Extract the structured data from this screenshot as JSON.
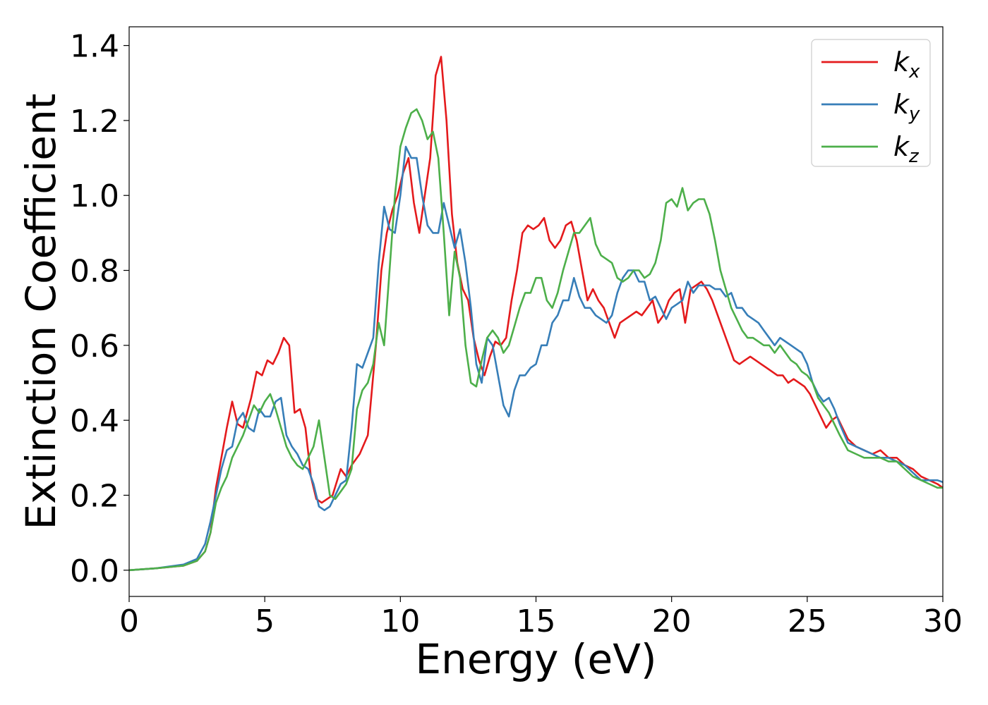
{
  "chart_data": {
    "type": "line",
    "xlabel": "Energy (eV)",
    "ylabel": "Extinction Coefficient",
    "xlim": [
      0,
      30
    ],
    "ylim": [
      -0.07,
      1.45
    ],
    "xticks": [
      0,
      5,
      10,
      15,
      20,
      25,
      30
    ],
    "xtick_labels": [
      "0",
      "5",
      "10",
      "15",
      "20",
      "25",
      "30"
    ],
    "yticks": [
      0.0,
      0.2,
      0.4,
      0.6,
      0.8,
      1.0,
      1.2,
      1.4
    ],
    "ytick_labels": [
      "0.0",
      "0.2",
      "0.4",
      "0.6",
      "0.8",
      "1.0",
      "1.2",
      "1.4"
    ],
    "grid": false,
    "legend_position": "top-right",
    "series": [
      {
        "name": "k_x",
        "legend_main": "k",
        "legend_sub": "x",
        "color": "#e41a1c",
        "x": [
          0,
          1,
          2,
          2.5,
          2.8,
          3.0,
          3.2,
          3.4,
          3.6,
          3.8,
          4.0,
          4.2,
          4.5,
          4.7,
          4.9,
          5.1,
          5.3,
          5.5,
          5.7,
          5.9,
          6.1,
          6.3,
          6.5,
          6.7,
          6.9,
          7.1,
          7.3,
          7.5,
          7.8,
          8.0,
          8.2,
          8.5,
          8.8,
          9.1,
          9.3,
          9.5,
          9.7,
          9.9,
          10.1,
          10.3,
          10.5,
          10.7,
          10.9,
          11.1,
          11.3,
          11.5,
          11.7,
          11.9,
          12.1,
          12.3,
          12.5,
          12.7,
          12.9,
          13.1,
          13.3,
          13.5,
          13.7,
          13.9,
          14.1,
          14.3,
          14.5,
          14.7,
          14.9,
          15.1,
          15.3,
          15.5,
          15.7,
          15.9,
          16.1,
          16.3,
          16.5,
          16.7,
          16.9,
          17.1,
          17.3,
          17.5,
          17.7,
          17.9,
          18.1,
          18.3,
          18.5,
          18.7,
          18.9,
          19.1,
          19.3,
          19.5,
          19.7,
          19.9,
          20.1,
          20.3,
          20.5,
          20.7,
          20.9,
          21.1,
          21.3,
          21.5,
          21.7,
          21.9,
          22.1,
          22.3,
          22.5,
          22.7,
          22.9,
          23.1,
          23.3,
          23.5,
          23.7,
          23.9,
          24.1,
          24.3,
          24.5,
          24.7,
          24.9,
          25.1,
          25.3,
          25.5,
          25.7,
          25.9,
          26.1,
          26.3,
          26.5,
          26.8,
          27.1,
          27.4,
          27.7,
          28.0,
          28.3,
          28.6,
          28.9,
          29.2,
          29.5,
          29.8,
          30
        ],
        "y": [
          0.0,
          0.005,
          0.012,
          0.025,
          0.05,
          0.1,
          0.22,
          0.3,
          0.38,
          0.45,
          0.39,
          0.38,
          0.46,
          0.53,
          0.52,
          0.56,
          0.55,
          0.58,
          0.62,
          0.6,
          0.42,
          0.43,
          0.38,
          0.25,
          0.19,
          0.18,
          0.19,
          0.2,
          0.27,
          0.25,
          0.28,
          0.31,
          0.36,
          0.6,
          0.8,
          0.9,
          0.96,
          1.0,
          1.06,
          1.1,
          0.98,
          0.9,
          1.0,
          1.1,
          1.32,
          1.37,
          1.2,
          0.95,
          0.82,
          0.75,
          0.72,
          0.62,
          0.56,
          0.52,
          0.57,
          0.61,
          0.6,
          0.62,
          0.72,
          0.8,
          0.9,
          0.92,
          0.91,
          0.92,
          0.94,
          0.88,
          0.86,
          0.88,
          0.92,
          0.93,
          0.88,
          0.8,
          0.72,
          0.75,
          0.72,
          0.7,
          0.66,
          0.62,
          0.66,
          0.67,
          0.68,
          0.69,
          0.68,
          0.7,
          0.72,
          0.66,
          0.68,
          0.72,
          0.74,
          0.75,
          0.66,
          0.75,
          0.76,
          0.77,
          0.75,
          0.72,
          0.68,
          0.64,
          0.6,
          0.56,
          0.55,
          0.56,
          0.57,
          0.56,
          0.55,
          0.54,
          0.53,
          0.52,
          0.52,
          0.5,
          0.51,
          0.5,
          0.49,
          0.47,
          0.44,
          0.41,
          0.38,
          0.4,
          0.41,
          0.38,
          0.35,
          0.33,
          0.32,
          0.31,
          0.32,
          0.3,
          0.3,
          0.28,
          0.27,
          0.25,
          0.24,
          0.23,
          0.22
        ]
      },
      {
        "name": "k_y",
        "legend_main": "k",
        "legend_sub": "y",
        "color": "#377eb8",
        "x": [
          0,
          1,
          2,
          2.5,
          2.8,
          3.0,
          3.2,
          3.4,
          3.6,
          3.8,
          4.0,
          4.2,
          4.4,
          4.6,
          4.8,
          5.0,
          5.2,
          5.4,
          5.6,
          5.8,
          6.0,
          6.2,
          6.4,
          6.6,
          6.8,
          7.0,
          7.2,
          7.4,
          7.6,
          7.8,
          8.0,
          8.2,
          8.4,
          8.6,
          8.8,
          9.0,
          9.2,
          9.4,
          9.6,
          9.8,
          10.0,
          10.2,
          10.4,
          10.6,
          10.8,
          11.0,
          11.2,
          11.4,
          11.6,
          11.8,
          12.0,
          12.2,
          12.4,
          12.6,
          12.8,
          13.0,
          13.2,
          13.4,
          13.6,
          13.8,
          14.0,
          14.2,
          14.4,
          14.6,
          14.8,
          15.0,
          15.2,
          15.4,
          15.6,
          15.8,
          16.0,
          16.2,
          16.4,
          16.6,
          16.8,
          17.0,
          17.2,
          17.4,
          17.6,
          17.8,
          18.0,
          18.2,
          18.4,
          18.6,
          18.8,
          19.0,
          19.2,
          19.4,
          19.6,
          19.8,
          20.0,
          20.2,
          20.4,
          20.6,
          20.8,
          21.0,
          21.2,
          21.4,
          21.6,
          21.8,
          22.0,
          22.2,
          22.4,
          22.6,
          22.8,
          23.0,
          23.2,
          23.4,
          23.6,
          23.8,
          24.0,
          24.2,
          24.4,
          24.6,
          24.8,
          25.0,
          25.2,
          25.4,
          25.6,
          25.8,
          26.0,
          26.2,
          26.5,
          26.8,
          27.1,
          27.4,
          27.7,
          28.0,
          28.3,
          28.6,
          28.9,
          29.2,
          29.5,
          29.8,
          30
        ],
        "y": [
          0.0,
          0.005,
          0.015,
          0.03,
          0.07,
          0.13,
          0.2,
          0.27,
          0.32,
          0.33,
          0.4,
          0.42,
          0.38,
          0.37,
          0.43,
          0.41,
          0.41,
          0.45,
          0.46,
          0.36,
          0.33,
          0.31,
          0.28,
          0.27,
          0.23,
          0.17,
          0.16,
          0.17,
          0.2,
          0.23,
          0.24,
          0.38,
          0.55,
          0.54,
          0.58,
          0.62,
          0.82,
          0.97,
          0.91,
          0.9,
          1.0,
          1.13,
          1.1,
          1.1,
          1.0,
          0.92,
          0.9,
          0.9,
          0.98,
          0.92,
          0.86,
          0.91,
          0.82,
          0.7,
          0.55,
          0.5,
          0.62,
          0.6,
          0.52,
          0.44,
          0.41,
          0.48,
          0.52,
          0.52,
          0.54,
          0.55,
          0.6,
          0.6,
          0.66,
          0.68,
          0.72,
          0.72,
          0.78,
          0.73,
          0.7,
          0.7,
          0.68,
          0.67,
          0.66,
          0.68,
          0.74,
          0.78,
          0.8,
          0.8,
          0.77,
          0.77,
          0.72,
          0.73,
          0.7,
          0.67,
          0.7,
          0.71,
          0.72,
          0.77,
          0.74,
          0.76,
          0.76,
          0.76,
          0.75,
          0.75,
          0.73,
          0.74,
          0.7,
          0.7,
          0.68,
          0.67,
          0.66,
          0.64,
          0.62,
          0.6,
          0.62,
          0.61,
          0.6,
          0.59,
          0.58,
          0.55,
          0.5,
          0.47,
          0.45,
          0.46,
          0.43,
          0.39,
          0.34,
          0.33,
          0.32,
          0.31,
          0.3,
          0.3,
          0.29,
          0.28,
          0.26,
          0.24,
          0.24,
          0.24,
          0.235
        ]
      },
      {
        "name": "k_z",
        "legend_main": "k",
        "legend_sub": "z",
        "color": "#4daf4a",
        "x": [
          0,
          1,
          2,
          2.5,
          2.8,
          3.0,
          3.2,
          3.4,
          3.6,
          3.8,
          4.0,
          4.2,
          4.4,
          4.6,
          4.8,
          5.0,
          5.2,
          5.4,
          5.6,
          5.8,
          6.0,
          6.2,
          6.4,
          6.6,
          6.8,
          7.0,
          7.2,
          7.4,
          7.6,
          7.8,
          8.0,
          8.2,
          8.4,
          8.6,
          8.8,
          9.0,
          9.2,
          9.4,
          9.6,
          9.8,
          10.0,
          10.2,
          10.4,
          10.6,
          10.8,
          11.0,
          11.2,
          11.4,
          11.6,
          11.8,
          12.0,
          12.2,
          12.4,
          12.6,
          12.8,
          13.0,
          13.2,
          13.4,
          13.6,
          13.8,
          14.0,
          14.2,
          14.4,
          14.6,
          14.8,
          15.0,
          15.2,
          15.4,
          15.6,
          15.8,
          16.0,
          16.2,
          16.4,
          16.6,
          16.8,
          17.0,
          17.2,
          17.4,
          17.6,
          17.8,
          18.0,
          18.2,
          18.4,
          18.6,
          18.8,
          19.0,
          19.2,
          19.4,
          19.6,
          19.8,
          20.0,
          20.2,
          20.4,
          20.6,
          20.8,
          21.0,
          21.2,
          21.4,
          21.6,
          21.8,
          22.0,
          22.2,
          22.4,
          22.6,
          22.8,
          23.0,
          23.2,
          23.4,
          23.6,
          23.8,
          24.0,
          24.2,
          24.4,
          24.6,
          24.8,
          25.0,
          25.2,
          25.4,
          25.6,
          25.8,
          26.0,
          26.2,
          26.5,
          26.8,
          27.1,
          27.4,
          27.7,
          28.0,
          28.3,
          28.6,
          28.9,
          29.2,
          29.5,
          29.8,
          30
        ],
        "y": [
          0.0,
          0.005,
          0.012,
          0.025,
          0.05,
          0.1,
          0.18,
          0.22,
          0.25,
          0.3,
          0.33,
          0.36,
          0.4,
          0.44,
          0.42,
          0.45,
          0.47,
          0.43,
          0.38,
          0.33,
          0.3,
          0.28,
          0.27,
          0.3,
          0.33,
          0.4,
          0.3,
          0.2,
          0.19,
          0.21,
          0.23,
          0.27,
          0.43,
          0.48,
          0.5,
          0.55,
          0.66,
          0.6,
          0.8,
          1.0,
          1.13,
          1.18,
          1.22,
          1.23,
          1.2,
          1.15,
          1.17,
          1.1,
          0.9,
          0.68,
          0.85,
          0.78,
          0.6,
          0.5,
          0.49,
          0.56,
          0.62,
          0.64,
          0.62,
          0.58,
          0.6,
          0.65,
          0.7,
          0.74,
          0.74,
          0.78,
          0.78,
          0.72,
          0.7,
          0.74,
          0.8,
          0.85,
          0.9,
          0.9,
          0.92,
          0.94,
          0.87,
          0.84,
          0.83,
          0.82,
          0.78,
          0.77,
          0.78,
          0.8,
          0.8,
          0.78,
          0.79,
          0.82,
          0.88,
          0.98,
          0.99,
          0.97,
          1.02,
          0.96,
          0.98,
          0.99,
          0.99,
          0.95,
          0.88,
          0.8,
          0.75,
          0.7,
          0.67,
          0.64,
          0.62,
          0.62,
          0.61,
          0.6,
          0.6,
          0.58,
          0.6,
          0.58,
          0.56,
          0.55,
          0.53,
          0.52,
          0.5,
          0.46,
          0.44,
          0.42,
          0.39,
          0.36,
          0.32,
          0.31,
          0.3,
          0.3,
          0.3,
          0.29,
          0.29,
          0.27,
          0.25,
          0.24,
          0.23,
          0.22,
          0.22
        ]
      }
    ]
  }
}
